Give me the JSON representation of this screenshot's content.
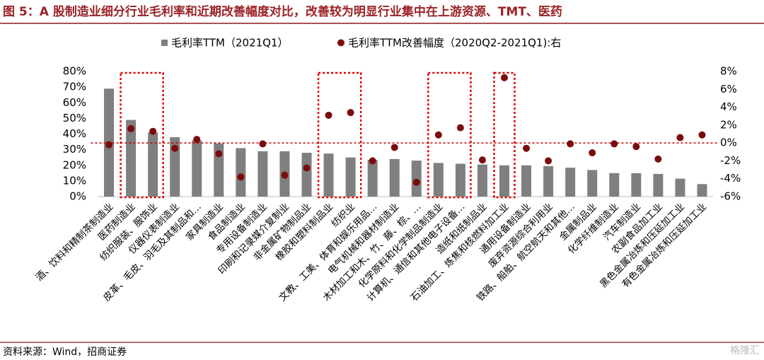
{
  "chart_data": {
    "type": "bar_dot_dual",
    "title": "图 5：A 股制造业细分行业毛利率和近期改善幅度对比，改善较为明显行业集中在上游资源、TMT、医药",
    "source": "资料来源：Wind，招商证券",
    "watermark": "格隆汇",
    "categories": [
      "酒、饮料和精制茶制造业",
      "医药制造业",
      "纺织服装、服饰业",
      "仪器仪表制造业",
      "皮革、毛皮、羽毛及其制品和…",
      "家具制造业",
      "食品制造业",
      "专用设备制造业",
      "印刷和记录媒介复制业",
      "非金属矿物制品业",
      "橡胶和塑料制品业",
      "纺织业",
      "文教、工美、体育和娱乐用品…",
      "电气机械和器材制造业",
      "木材加工和木、竹、藤、棕、…",
      "化学原料和化学制品制造业",
      "计算机、通信和其他电子设备…",
      "造纸和纸制品业",
      "石油加工、炼焦和核燃料加工业",
      "通用设备制造业",
      "废弃资源综合利用业",
      "铁路、船舶、航空航天和其他…",
      "金属制品业",
      "化学纤维制造业",
      "汽车制造业",
      "农副食品加工业",
      "黑色金属冶炼和压延加工业",
      "有色金属冶炼和压延加工业"
    ],
    "series": [
      {
        "name": "毛利率TTM（2021Q1）",
        "color": "#7f7f7f",
        "mark": "bar",
        "values": [
          69,
          49,
          41,
          38,
          36,
          34,
          31,
          29,
          29,
          28,
          27.5,
          25,
          23.5,
          24,
          23,
          21.5,
          21,
          20.5,
          20,
          20,
          19.5,
          18.5,
          17,
          15,
          15,
          14.5,
          11.5,
          8
        ]
      },
      {
        "name": "毛利率TTM改善幅度（2020Q2-2021Q1):右",
        "color": "#7b0c0c",
        "mark": "dot",
        "axis": "y2",
        "values": [
          -0.2,
          1.6,
          1.3,
          -0.6,
          0.4,
          -1.2,
          -3.8,
          -0.1,
          -3.6,
          -2.8,
          3.1,
          3.4,
          -2.0,
          -0.5,
          -4.4,
          0.9,
          1.7,
          -1.9,
          7.3,
          -0.6,
          -2.0,
          -0.1,
          -1.1,
          -0.1,
          -0.4,
          -1.8,
          0.6,
          0.9
        ]
      }
    ],
    "ylim": [
      0,
      80
    ],
    "yticks": [
      {
        "value": 0,
        "label": "0%"
      },
      {
        "value": 10,
        "label": "10%"
      },
      {
        "value": 20,
        "label": "20%"
      },
      {
        "value": 30,
        "label": "30%"
      },
      {
        "value": 40,
        "label": "40%"
      },
      {
        "value": 50,
        "label": "50%"
      },
      {
        "value": 60,
        "label": "60%"
      },
      {
        "value": 70,
        "label": "70%"
      },
      {
        "value": 80,
        "label": "80%"
      }
    ],
    "y2lim": [
      -6,
      8
    ],
    "y2ticks": [
      {
        "value": -6,
        "label": "-6%"
      },
      {
        "value": -4,
        "label": "-4%"
      },
      {
        "value": -2,
        "label": "-2%"
      },
      {
        "value": 0,
        "label": "0%"
      },
      {
        "value": 2,
        "label": "2%"
      },
      {
        "value": 4,
        "label": "4%"
      },
      {
        "value": 6,
        "label": "6%"
      },
      {
        "value": 8,
        "label": "8%"
      }
    ],
    "reference_line": {
      "axis": "y2",
      "value": 0,
      "color": "#c00000"
    },
    "highlight_categories": [
      [
        1,
        2
      ],
      [
        10,
        11
      ],
      [
        15,
        16
      ],
      [
        18,
        18
      ]
    ],
    "highlight_color": "#e00000",
    "legend": "top"
  }
}
